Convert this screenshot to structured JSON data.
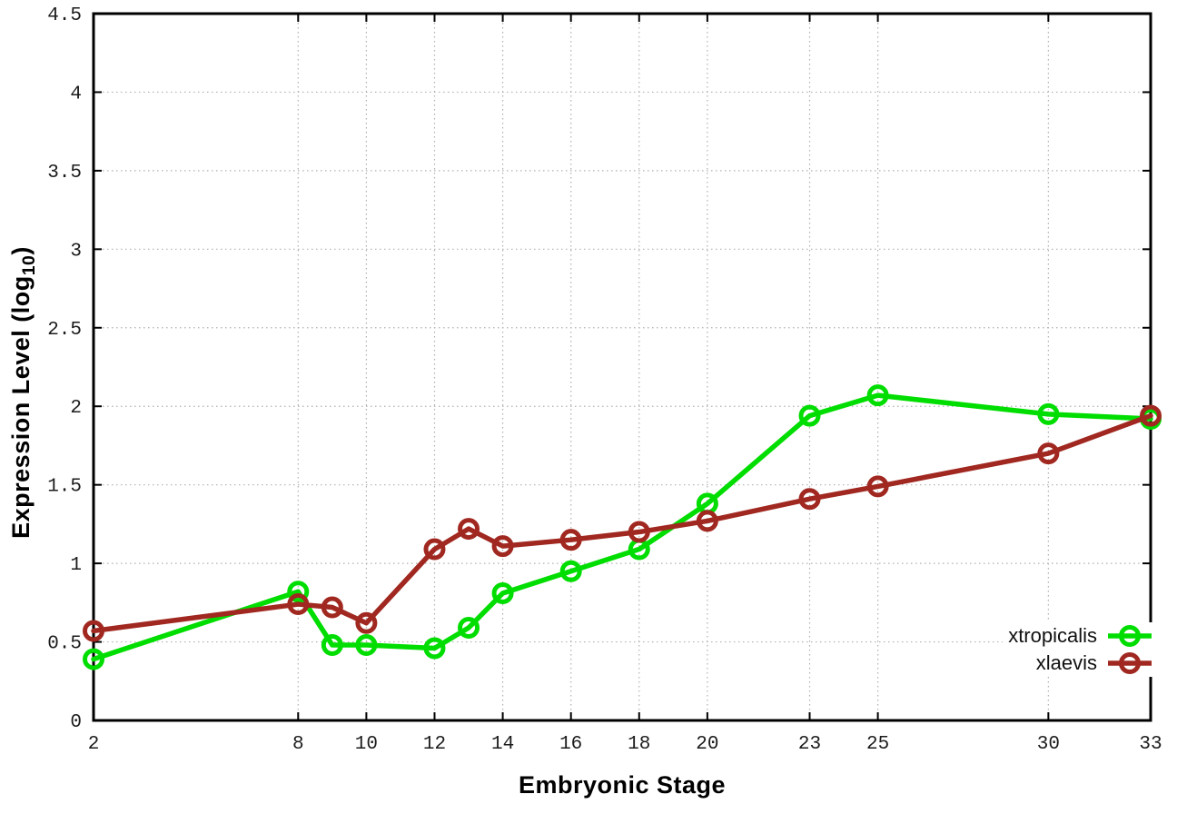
{
  "chart_data": {
    "type": "line",
    "title": "",
    "xlabel": "Embryonic Stage",
    "ylabel": {
      "prefix": "Expression Level (log",
      "sub": "10",
      "suffix": ")"
    },
    "xlim": [
      2,
      33
    ],
    "ylim": [
      0,
      4.5
    ],
    "x": [
      2,
      8,
      9,
      10,
      12,
      13,
      14,
      16,
      18,
      20,
      23,
      25,
      30,
      33
    ],
    "xticks": [
      2,
      8,
      10,
      12,
      14,
      16,
      18,
      20,
      23,
      25,
      30,
      33
    ],
    "yticks": [
      0,
      0.5,
      1,
      1.5,
      2,
      2.5,
      3,
      3.5,
      4,
      4.5
    ],
    "ytick_labels": [
      "0",
      "0.5",
      "1",
      "1.5",
      "2",
      "2.5",
      "3",
      "3.5",
      "4",
      "4.5"
    ],
    "grid": true,
    "grid_style": "dotted",
    "legend_position": "inside-bottom-right",
    "marker": "open-circle",
    "series": [
      {
        "name": "xtropicalis",
        "color": "#00dd00",
        "values": [
          0.39,
          0.82,
          0.48,
          0.48,
          0.46,
          0.59,
          0.81,
          0.95,
          1.09,
          1.38,
          1.94,
          2.07,
          1.95,
          1.92
        ]
      },
      {
        "name": "xlaevis",
        "color": "#a02820",
        "values": [
          0.57,
          0.74,
          0.72,
          0.62,
          1.09,
          1.22,
          1.11,
          1.15,
          1.2,
          1.27,
          1.41,
          1.49,
          1.7,
          1.94
        ]
      }
    ],
    "colors": {
      "background": "#ffffff",
      "axis_border": "#000000",
      "grid": "#b0b0b0",
      "tick_text": "#1c1c1c"
    }
  }
}
